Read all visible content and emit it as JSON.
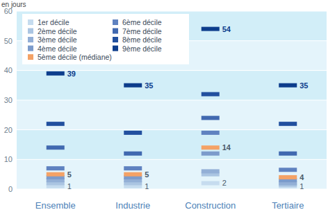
{
  "chart_data": {
    "type": "dash",
    "y_label": "en jours",
    "categories": [
      "Ensemble",
      "Industrie",
      "Construction",
      "Tertiaire"
    ],
    "ylim": [
      0,
      60
    ],
    "yticks": [
      0,
      10,
      20,
      30,
      40,
      50,
      60
    ],
    "grid": true,
    "legend": "top-left",
    "data_labels": true,
    "series": [
      {
        "name": "1er décile",
        "color": "#c6dcef",
        "values": [
          1,
          1,
          2,
          1
        ],
        "value_labels": [
          "1",
          "1",
          "2",
          "1"
        ]
      },
      {
        "name": "2ème décile",
        "color": "#abc5e2",
        "values": [
          2,
          2,
          5,
          1.5
        ]
      },
      {
        "name": "3ème décile",
        "color": "#93afd6",
        "values": [
          3,
          3,
          6,
          2
        ]
      },
      {
        "name": "4ème décile",
        "color": "#7c9bcb",
        "values": [
          4,
          4,
          12,
          3
        ]
      },
      {
        "name": "5ème décile (médiane)",
        "color": "#f4a266",
        "values": [
          5,
          5,
          14,
          4
        ],
        "value_labels": [
          "5",
          "5",
          "14",
          "4"
        ]
      },
      {
        "name": "6ème décile",
        "color": "#5f82c0",
        "values": [
          7,
          7,
          19,
          6.5
        ]
      },
      {
        "name": "7ème décile",
        "color": "#4169b0",
        "values": [
          14,
          12,
          24,
          12
        ]
      },
      {
        "name": "8ème décile",
        "color": "#22509f",
        "values": [
          22,
          19,
          32,
          22
        ]
      },
      {
        "name": "9ème décile",
        "color": "#0d3d8c",
        "values": [
          39,
          35,
          54,
          35
        ],
        "value_labels": [
          "39",
          "35",
          "54",
          "35"
        ]
      }
    ]
  }
}
